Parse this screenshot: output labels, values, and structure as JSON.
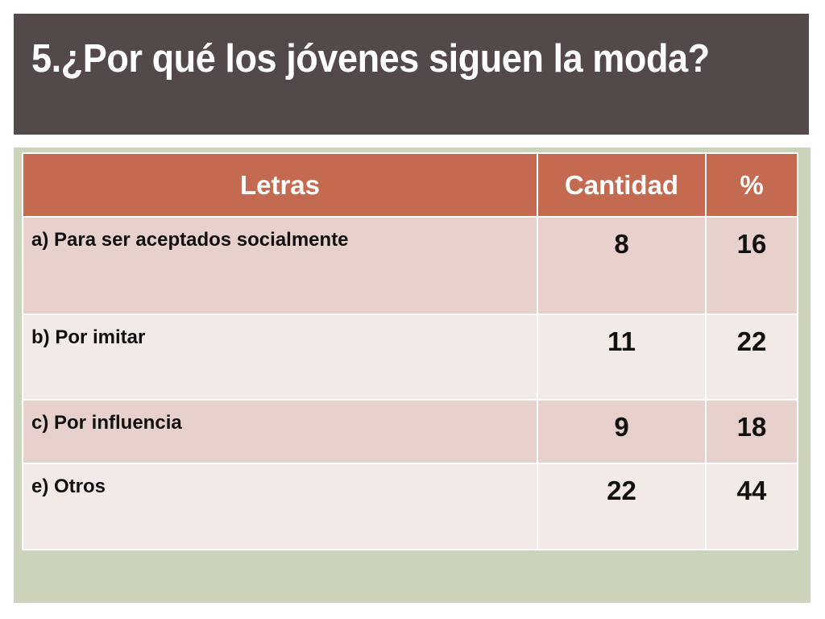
{
  "slide": {
    "title": "5.¿Por qué los jóvenes siguen la moda?"
  },
  "table": {
    "headers": [
      "Letras",
      "Cantidad",
      "%"
    ],
    "rows": [
      {
        "letra": "a) Para  ser aceptados socialmente",
        "cantidad": "8",
        "porcentaje": "16"
      },
      {
        "letra": "b) Por imitar",
        "cantidad": "11",
        "porcentaje": "22"
      },
      {
        "letra": "c) Por influencia",
        "cantidad": "9",
        "porcentaje": "18"
      },
      {
        "letra": "e) Otros",
        "cantidad": "22",
        "porcentaje": "44"
      }
    ]
  },
  "colors": {
    "title_bar": "#524948",
    "panel": "#cbd3bb",
    "header": "#c46a51",
    "row_odd": "#e8d1cc",
    "row_even": "#f3e9e6"
  }
}
